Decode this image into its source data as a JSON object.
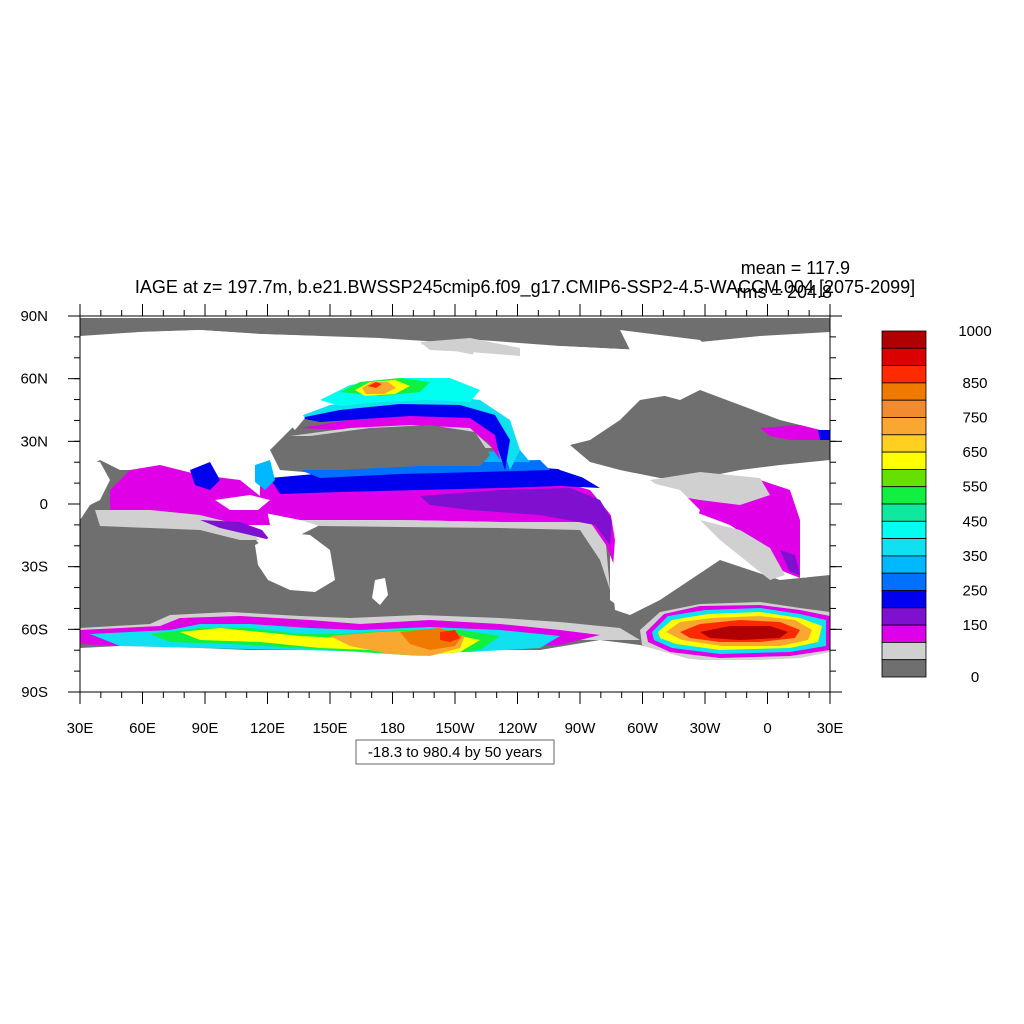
{
  "title": "IAGE at z= 197.7m, b.e21.BWSSP245cmip6.f09_g17.CMIP6-SSP2-4.5-WACCM.004 [2075-2099]",
  "stats": {
    "mean": "mean = 117.9",
    "rms": "rms = 204.8"
  },
  "range_note": "-18.3 to 980.4 by 50 years",
  "axes": {
    "lat_ticks": [
      {
        "lat": 90,
        "label": "90N"
      },
      {
        "lat": 60,
        "label": "60N"
      },
      {
        "lat": 30,
        "label": "30N"
      },
      {
        "lat": 0,
        "label": "0"
      },
      {
        "lat": -30,
        "label": "30S"
      },
      {
        "lat": -60,
        "label": "60S"
      },
      {
        "lat": -90,
        "label": "90S"
      }
    ],
    "lon_ticks": [
      {
        "lon": 30,
        "label": "30E"
      },
      {
        "lon": 60,
        "label": "60E"
      },
      {
        "lon": 90,
        "label": "90E"
      },
      {
        "lon": 120,
        "label": "120E"
      },
      {
        "lon": 150,
        "label": "150E"
      },
      {
        "lon": 180,
        "label": "180"
      },
      {
        "lon": 210,
        "label": "150W"
      },
      {
        "lon": 240,
        "label": "120W"
      },
      {
        "lon": 270,
        "label": "90W"
      },
      {
        "lon": 300,
        "label": "60W"
      },
      {
        "lon": 330,
        "label": "30W"
      },
      {
        "lon": 360,
        "label": "0"
      },
      {
        "lon": 390,
        "label": "30E"
      }
    ],
    "lon_range": [
      30,
      390
    ],
    "lat_range": [
      -90,
      90
    ]
  },
  "colorbar": {
    "colors": [
      "#b00000",
      "#dd0000",
      "#ff2a00",
      "#f07a00",
      "#f28a30",
      "#f8a830",
      "#ffd020",
      "#ffff00",
      "#66e000",
      "#10f040",
      "#10e8a0",
      "#00fff0",
      "#10e0f0",
      "#00b8ff",
      "#0070ff",
      "#0000ee",
      "#8010d0",
      "#e000e8",
      "#d0d0d0",
      "#6f6f6f"
    ],
    "labels": [
      {
        "index": 0,
        "text": "1000"
      },
      {
        "index": 3,
        "text": "850"
      },
      {
        "index": 5,
        "text": "750"
      },
      {
        "index": 7,
        "text": "650"
      },
      {
        "index": 9,
        "text": "550"
      },
      {
        "index": 11,
        "text": "450"
      },
      {
        "index": 13,
        "text": "350"
      },
      {
        "index": 15,
        "text": "250"
      },
      {
        "index": 17,
        "text": "150"
      },
      {
        "index": 20,
        "text": "0"
      }
    ]
  },
  "map_colors": {
    "land": "#ffffff",
    "low": "#6f6f6f",
    "grey": "#d0d0d0",
    "magenta": "#e000e8",
    "purple": "#8010d0",
    "blue": "#0000ee",
    "blue2": "#0070ff",
    "sky": "#00b8ff",
    "cyan": "#10e0f0",
    "aqua": "#00fff0",
    "teal": "#10e8a0",
    "green": "#10f040",
    "lime": "#66e000",
    "yellow": "#ffff00",
    "gold": "#ffd020",
    "orange": "#f8a830",
    "orange2": "#f07a00",
    "red": "#ff2a00",
    "darkred": "#b00000"
  }
}
